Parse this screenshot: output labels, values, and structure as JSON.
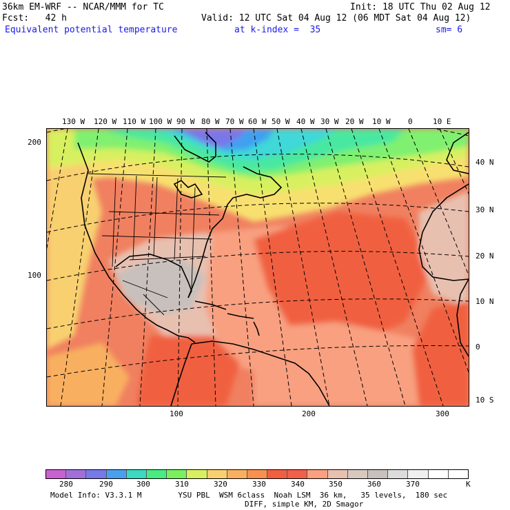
{
  "header": {
    "model_title": "36km EM-WRF -- NCAR/MMM for TC",
    "init_time": "Init: 18 UTC Thu 02 Aug 12",
    "fcst_label": "Fcst:   42 h",
    "valid_time": "Valid: 12 UTC Sat 04 Aug 12 (06 MDT Sat 04 Aug 12)",
    "field_name": "Equivalent potential temperature",
    "level": "at k-index =  35",
    "smoothing": "sm= 6"
  },
  "map": {
    "top_lon_labels": [
      "130 W",
      "120 W",
      "110 W",
      "100 W",
      "90 W",
      "80 W",
      "70 W",
      "60 W",
      "50 W",
      "40 W",
      "30 W",
      "20 W",
      "10 W",
      "0",
      "10 E"
    ],
    "right_lat_labels": [
      "40 N",
      "30 N",
      "20 N",
      "10 N",
      "0",
      "10 S"
    ],
    "left_grid_labels": [
      "200",
      "100"
    ],
    "bottom_grid_labels": [
      "100",
      "200",
      "300"
    ]
  },
  "legend": {
    "levels": [
      "280",
      "290",
      "300",
      "310",
      "320",
      "330",
      "340",
      "350",
      "360",
      "370"
    ],
    "unit": "K",
    "colors": [
      "#c862d0",
      "#a070d8",
      "#7878e8",
      "#4aa0ee",
      "#3cd8c0",
      "#48ec80",
      "#78f060",
      "#d8f060",
      "#f8d070",
      "#f8b060",
      "#f89050",
      "#f06040",
      "#f0604a",
      "#f8a080",
      "#e8c0b0",
      "#d8c8c0",
      "#c8c0bc",
      "#dcdcdc",
      "#f0f0f0",
      "#ffffff",
      "#ffffff"
    ]
  },
  "footer": {
    "line1": "Model Info: V3.3.1 M        YSU PBL  WSM 6class  Noah LSM  36 km,   35 levels,  180 sec",
    "line2": "DIFF, simple KM, 2D Smagor"
  }
}
